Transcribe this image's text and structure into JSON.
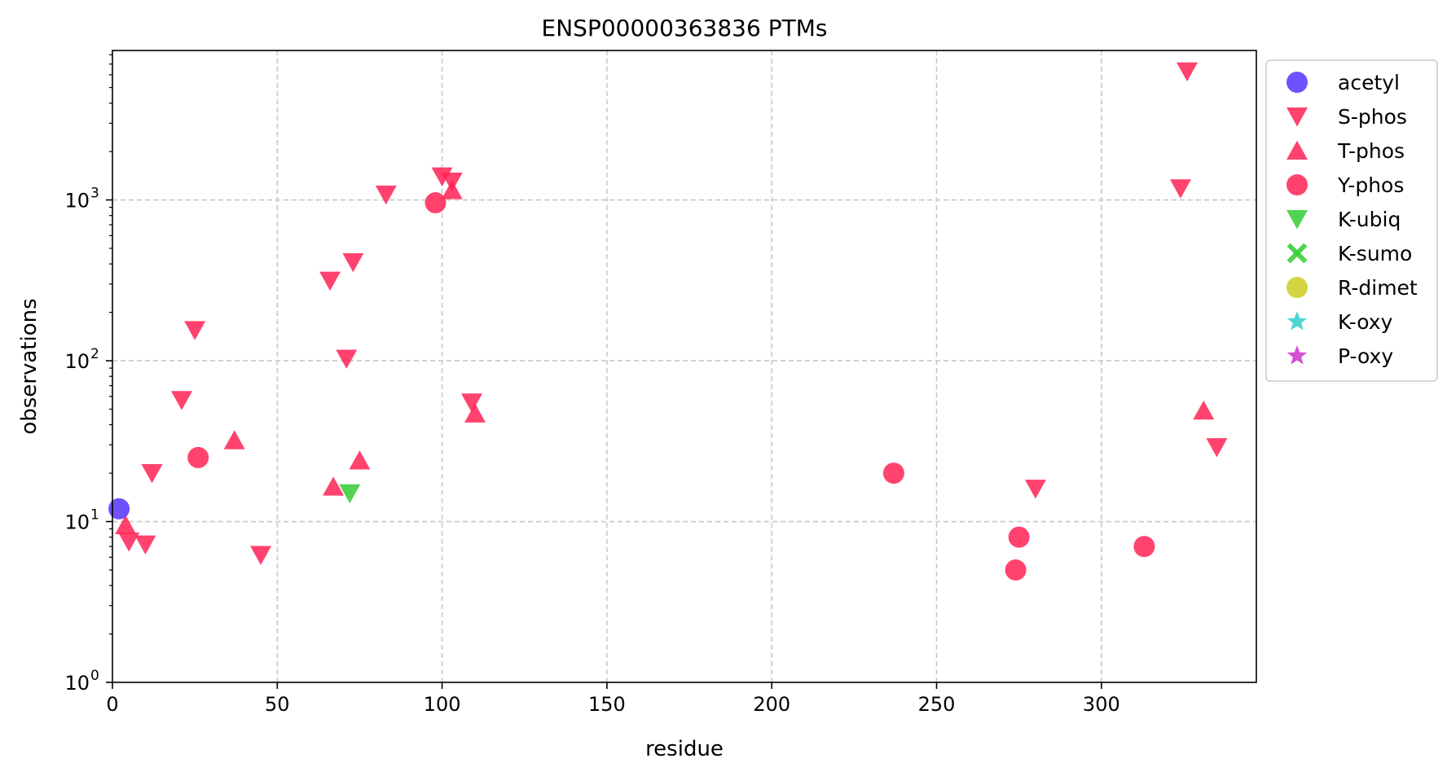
{
  "chart_data": {
    "type": "scatter",
    "title": "ENSP00000363836 PTMs",
    "xlabel": "residue",
    "ylabel": "observations",
    "xlim": [
      0,
      347
    ],
    "ylim": [
      1,
      8500
    ],
    "yscale": "log",
    "grid": true,
    "legend_position": "outside-right-top",
    "x_ticks": [
      0,
      50,
      100,
      150,
      200,
      250,
      300
    ],
    "y_ticks": [
      {
        "value": 1,
        "base": "10",
        "exp": "0"
      },
      {
        "value": 10,
        "base": "10",
        "exp": "1"
      },
      {
        "value": 100,
        "base": "10",
        "exp": "2"
      },
      {
        "value": 1000,
        "base": "10",
        "exp": "3"
      }
    ],
    "series": [
      {
        "name": "acetyl",
        "marker": "circle",
        "color": "#5533ff",
        "points": [
          {
            "x": 2,
            "y": 12
          }
        ]
      },
      {
        "name": "S-phos",
        "marker": "triangle-down",
        "color": "#ff2255",
        "points": [
          {
            "x": 5,
            "y": 7.5
          },
          {
            "x": 10,
            "y": 7.2
          },
          {
            "x": 12,
            "y": 20
          },
          {
            "x": 21,
            "y": 57
          },
          {
            "x": 25,
            "y": 155
          },
          {
            "x": 45,
            "y": 6.2
          },
          {
            "x": 66,
            "y": 315
          },
          {
            "x": 71,
            "y": 103
          },
          {
            "x": 73,
            "y": 410
          },
          {
            "x": 83,
            "y": 1080
          },
          {
            "x": 100,
            "y": 1400
          },
          {
            "x": 103,
            "y": 1300
          },
          {
            "x": 109,
            "y": 55
          },
          {
            "x": 280,
            "y": 16
          },
          {
            "x": 324,
            "y": 1180
          },
          {
            "x": 326,
            "y": 6300
          },
          {
            "x": 335,
            "y": 29
          }
        ]
      },
      {
        "name": "T-phos",
        "marker": "triangle-up",
        "color": "#ff2255",
        "points": [
          {
            "x": 4,
            "y": 9.5
          },
          {
            "x": 37,
            "y": 32
          },
          {
            "x": 67,
            "y": 16.5
          },
          {
            "x": 75,
            "y": 24
          },
          {
            "x": 103,
            "y": 1150
          },
          {
            "x": 110,
            "y": 47
          },
          {
            "x": 331,
            "y": 49
          }
        ]
      },
      {
        "name": "Y-phos",
        "marker": "circle",
        "color": "#ff2255",
        "points": [
          {
            "x": 26,
            "y": 25
          },
          {
            "x": 98,
            "y": 960
          },
          {
            "x": 237,
            "y": 20
          },
          {
            "x": 274,
            "y": 5
          },
          {
            "x": 275,
            "y": 8
          },
          {
            "x": 313,
            "y": 7
          }
        ]
      },
      {
        "name": "K-ubiq",
        "marker": "triangle-down",
        "color": "#33cc33",
        "points": [
          {
            "x": 72,
            "y": 15
          }
        ]
      },
      {
        "name": "K-sumo",
        "marker": "x",
        "color": "#33cc33",
        "points": []
      },
      {
        "name": "R-dimet",
        "marker": "circle",
        "color": "#cccc22",
        "points": []
      },
      {
        "name": "K-oxy",
        "marker": "star",
        "color": "#33cccc",
        "points": []
      },
      {
        "name": "P-oxy",
        "marker": "star",
        "color": "#cc33cc",
        "points": []
      }
    ]
  }
}
